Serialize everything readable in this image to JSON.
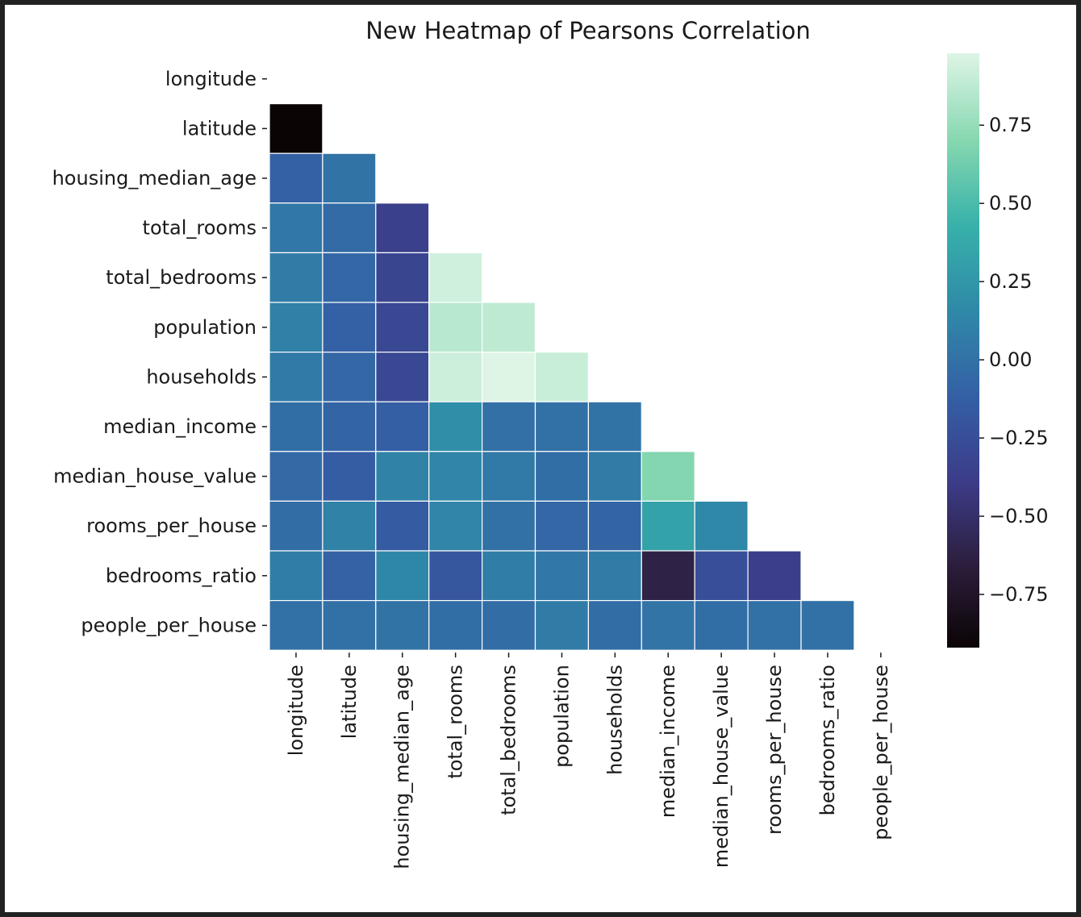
{
  "chart_data": {
    "type": "heatmap",
    "title": "New Heatmap of Pearsons Correlation",
    "variables": [
      "longitude",
      "latitude",
      "housing_median_age",
      "total_rooms",
      "total_bedrooms",
      "population",
      "households",
      "median_income",
      "median_house_value",
      "rooms_per_house",
      "bedrooms_ratio",
      "people_per_house"
    ],
    "mask": "upper triangle including diagonal",
    "matrix": [
      [
        null
      ],
      [
        -0.92,
        null
      ],
      [
        -0.11,
        0.01,
        null
      ],
      [
        0.04,
        -0.04,
        -0.36,
        null
      ],
      [
        0.07,
        -0.07,
        -0.32,
        0.93,
        null
      ],
      [
        0.1,
        -0.11,
        -0.3,
        0.86,
        0.88,
        null
      ],
      [
        0.06,
        -0.07,
        -0.3,
        0.92,
        0.98,
        0.91,
        null
      ],
      [
        -0.02,
        -0.08,
        -0.12,
        0.2,
        -0.01,
        0.0,
        0.01,
        null
      ],
      [
        -0.05,
        -0.14,
        0.11,
        0.13,
        0.05,
        -0.02,
        0.07,
        0.69,
        null
      ],
      [
        -0.03,
        0.11,
        -0.15,
        0.13,
        0.0,
        -0.07,
        -0.08,
        0.33,
        0.15,
        null
      ],
      [
        0.08,
        -0.1,
        0.14,
        -0.19,
        0.08,
        0.04,
        0.07,
        -0.62,
        -0.25,
        -0.37,
        null
      ],
      [
        0.0,
        0.0,
        0.01,
        -0.02,
        -0.03,
        0.07,
        -0.03,
        0.02,
        -0.02,
        0.0,
        0.0,
        null
      ]
    ],
    "colorbar": {
      "colormap": "mako",
      "vmin": -0.92,
      "vmax": 0.98,
      "ticks": [
        "0.75",
        "0.50",
        "0.25",
        "0.00",
        "−0.25",
        "−0.50",
        "−0.75"
      ],
      "tick_values": [
        0.75,
        0.5,
        0.25,
        0.0,
        -0.25,
        -0.5,
        -0.75
      ]
    },
    "grid_line_color": "#ffffff"
  }
}
